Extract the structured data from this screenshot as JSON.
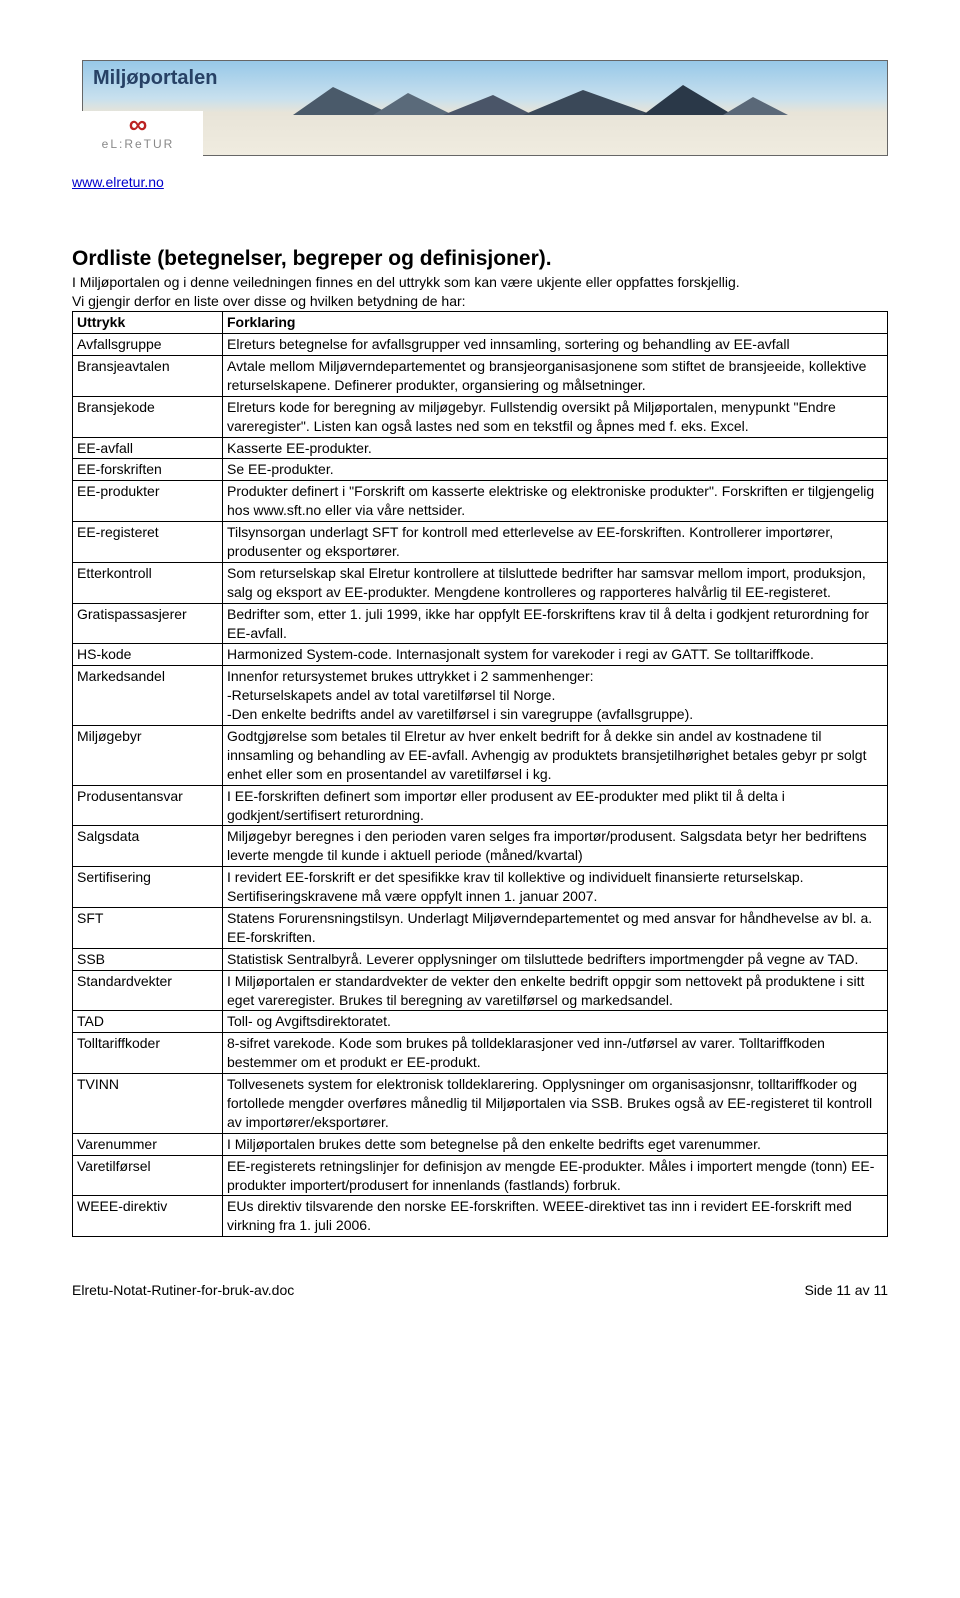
{
  "banner": {
    "title": "Miljøportalen",
    "logo_symbol": "∞",
    "logo_text": "eL:ReTUR"
  },
  "url": "www.elretur.no",
  "heading": "Ordliste (betegnelser, begreper og definisjoner).",
  "intro": "I Miljøportalen og i denne veiledningen finnes en del uttrykk som kan være ukjente eller oppfattes forskjellig.",
  "diagram": "Vi gjengir derfor en liste over disse og hvilken betydning de har:",
  "table": {
    "h1": "Uttrykk",
    "h2": "Forklaring",
    "rows": [
      {
        "t": "Avfallsgruppe",
        "d": "Elreturs betegnelse for avfallsgrupper ved innsamling, sortering og behandling av EE-avfall"
      },
      {
        "t": "Bransjeavtalen",
        "d": "Avtale mellom Miljøverndepartementet og bransjeorganisasjonene som stiftet de bransjeeide, kollektive returselskapene. Definerer produkter, organsiering og målsetninger."
      },
      {
        "t": "Bransjekode",
        "d": "Elreturs kode for beregning av miljøgebyr. Fullstendig oversikt på Miljøportalen, menypunkt \"Endre vareregister\". Listen kan også lastes ned som en tekstfil og åpnes med f. eks. Excel."
      },
      {
        "t": "EE-avfall",
        "d": "Kasserte EE-produkter."
      },
      {
        "t": "EE-forskriften",
        "d": "Se EE-produkter."
      },
      {
        "t": "EE-produkter",
        "d": "Produkter definert i \"Forskrift om kasserte elektriske og elektroniske produkter\". Forskriften er tilgjengelig hos www.sft.no eller via våre nettsider."
      },
      {
        "t": "EE-registeret",
        "d": "Tilsynsorgan underlagt SFT for kontroll med etterlevelse av EE-forskriften. Kontrollerer importører, produsenter og eksportører."
      },
      {
        "t": "Etterkontroll",
        "d": "Som returselskap skal Elretur kontrollere at tilsluttede bedrifter har samsvar mellom import, produksjon, salg og eksport av EE-produkter. Mengdene kontrolleres og rapporteres halvårlig til EE-registeret."
      },
      {
        "t": "Gratispassasjerer",
        "d": "Bedrifter som, etter 1. juli 1999, ikke har oppfylt EE-forskriftens krav til å delta i godkjent returordning for EE-avfall."
      },
      {
        "t": "HS-kode",
        "d": "Harmonized System-code. Internasjonalt system for varekoder i regi av GATT. Se tolltariffkode."
      },
      {
        "t": "Markedsandel",
        "d": "Innenfor retursystemet brukes uttrykket i 2 sammenhenger:\n-Returselskapets andel av total varetilførsel til Norge.\n-Den enkelte bedrifts andel av varetilførsel i sin varegruppe (avfallsgruppe)."
      },
      {
        "t": "Miljøgebyr",
        "d": "Godtgjørelse som betales til Elretur av hver enkelt bedrift for å dekke sin andel av kostnadene til innsamling og behandling av EE-avfall. Avhengig av produktets bransjetilhørighet betales gebyr pr solgt enhet eller som en prosentandel av varetilførsel i kg."
      },
      {
        "t": "Produsentansvar",
        "d": "I EE-forskriften definert som importør eller produsent av EE-produkter med plikt til å delta i godkjent/sertifisert returordning."
      },
      {
        "t": "Salgsdata",
        "d": "Miljøgebyr beregnes i den perioden varen selges fra importør/produsent. Salgsdata betyr her bedriftens leverte mengde til kunde i aktuell periode (måned/kvartal)"
      },
      {
        "t": "Sertifisering",
        "d": "I revidert EE-forskrift er det spesifikke krav til kollektive og individuelt finansierte returselskap. Sertifiseringskravene må være oppfylt innen 1. januar 2007."
      },
      {
        "t": "SFT",
        "d": "Statens Forurensningstilsyn. Underlagt Miljøverndepartementet og med ansvar for håndhevelse av bl. a. EE-forskriften."
      },
      {
        "t": "SSB",
        "d": "Statistisk Sentralbyrå. Leverer opplysninger om tilsluttede bedrifters importmengder på vegne av TAD."
      },
      {
        "t": "Standardvekter",
        "d": "I Miljøportalen er standardvekter de vekter den enkelte bedrift oppgir som nettovekt på produktene i sitt eget vareregister. Brukes til beregning av varetilførsel og markedsandel."
      },
      {
        "t": "TAD",
        "d": "Toll- og Avgiftsdirektoratet."
      },
      {
        "t": "Tolltariffkoder",
        "d": "8-sifret varekode. Kode som brukes på tolldeklarasjoner ved inn-/utførsel av varer. Tolltariffkoden bestemmer om et produkt er EE-produkt."
      },
      {
        "t": "TVINN",
        "d": "Tollvesenets system for elektronisk tolldeklarering. Opplysninger om organisasjonsnr, tolltariffkoder og fortollede mengder overføres månedlig til Miljøportalen via SSB. Brukes også av EE-registeret til kontroll av importører/eksportører."
      },
      {
        "t": "Varenummer",
        "d": "I Miljøportalen brukes dette som betegnelse på den enkelte bedrifts eget varenummer."
      },
      {
        "t": "Varetilførsel",
        "d": "EE-registerets retningslinjer for definisjon av mengde EE-produkter. Måles i importert mengde (tonn) EE-produkter importert/produsert for innenlands (fastlands) forbruk."
      },
      {
        "t": "WEEE-direktiv",
        "d": "EUs direktiv tilsvarende den norske EE-forskriften. WEEE-direktivet tas inn i revidert EE-forskrift med virkning fra 1. juli 2006."
      }
    ]
  },
  "footer": {
    "left": "Elretu-Notat-Rutiner-for-bruk-av.doc",
    "right": "Side 11 av 11"
  }
}
